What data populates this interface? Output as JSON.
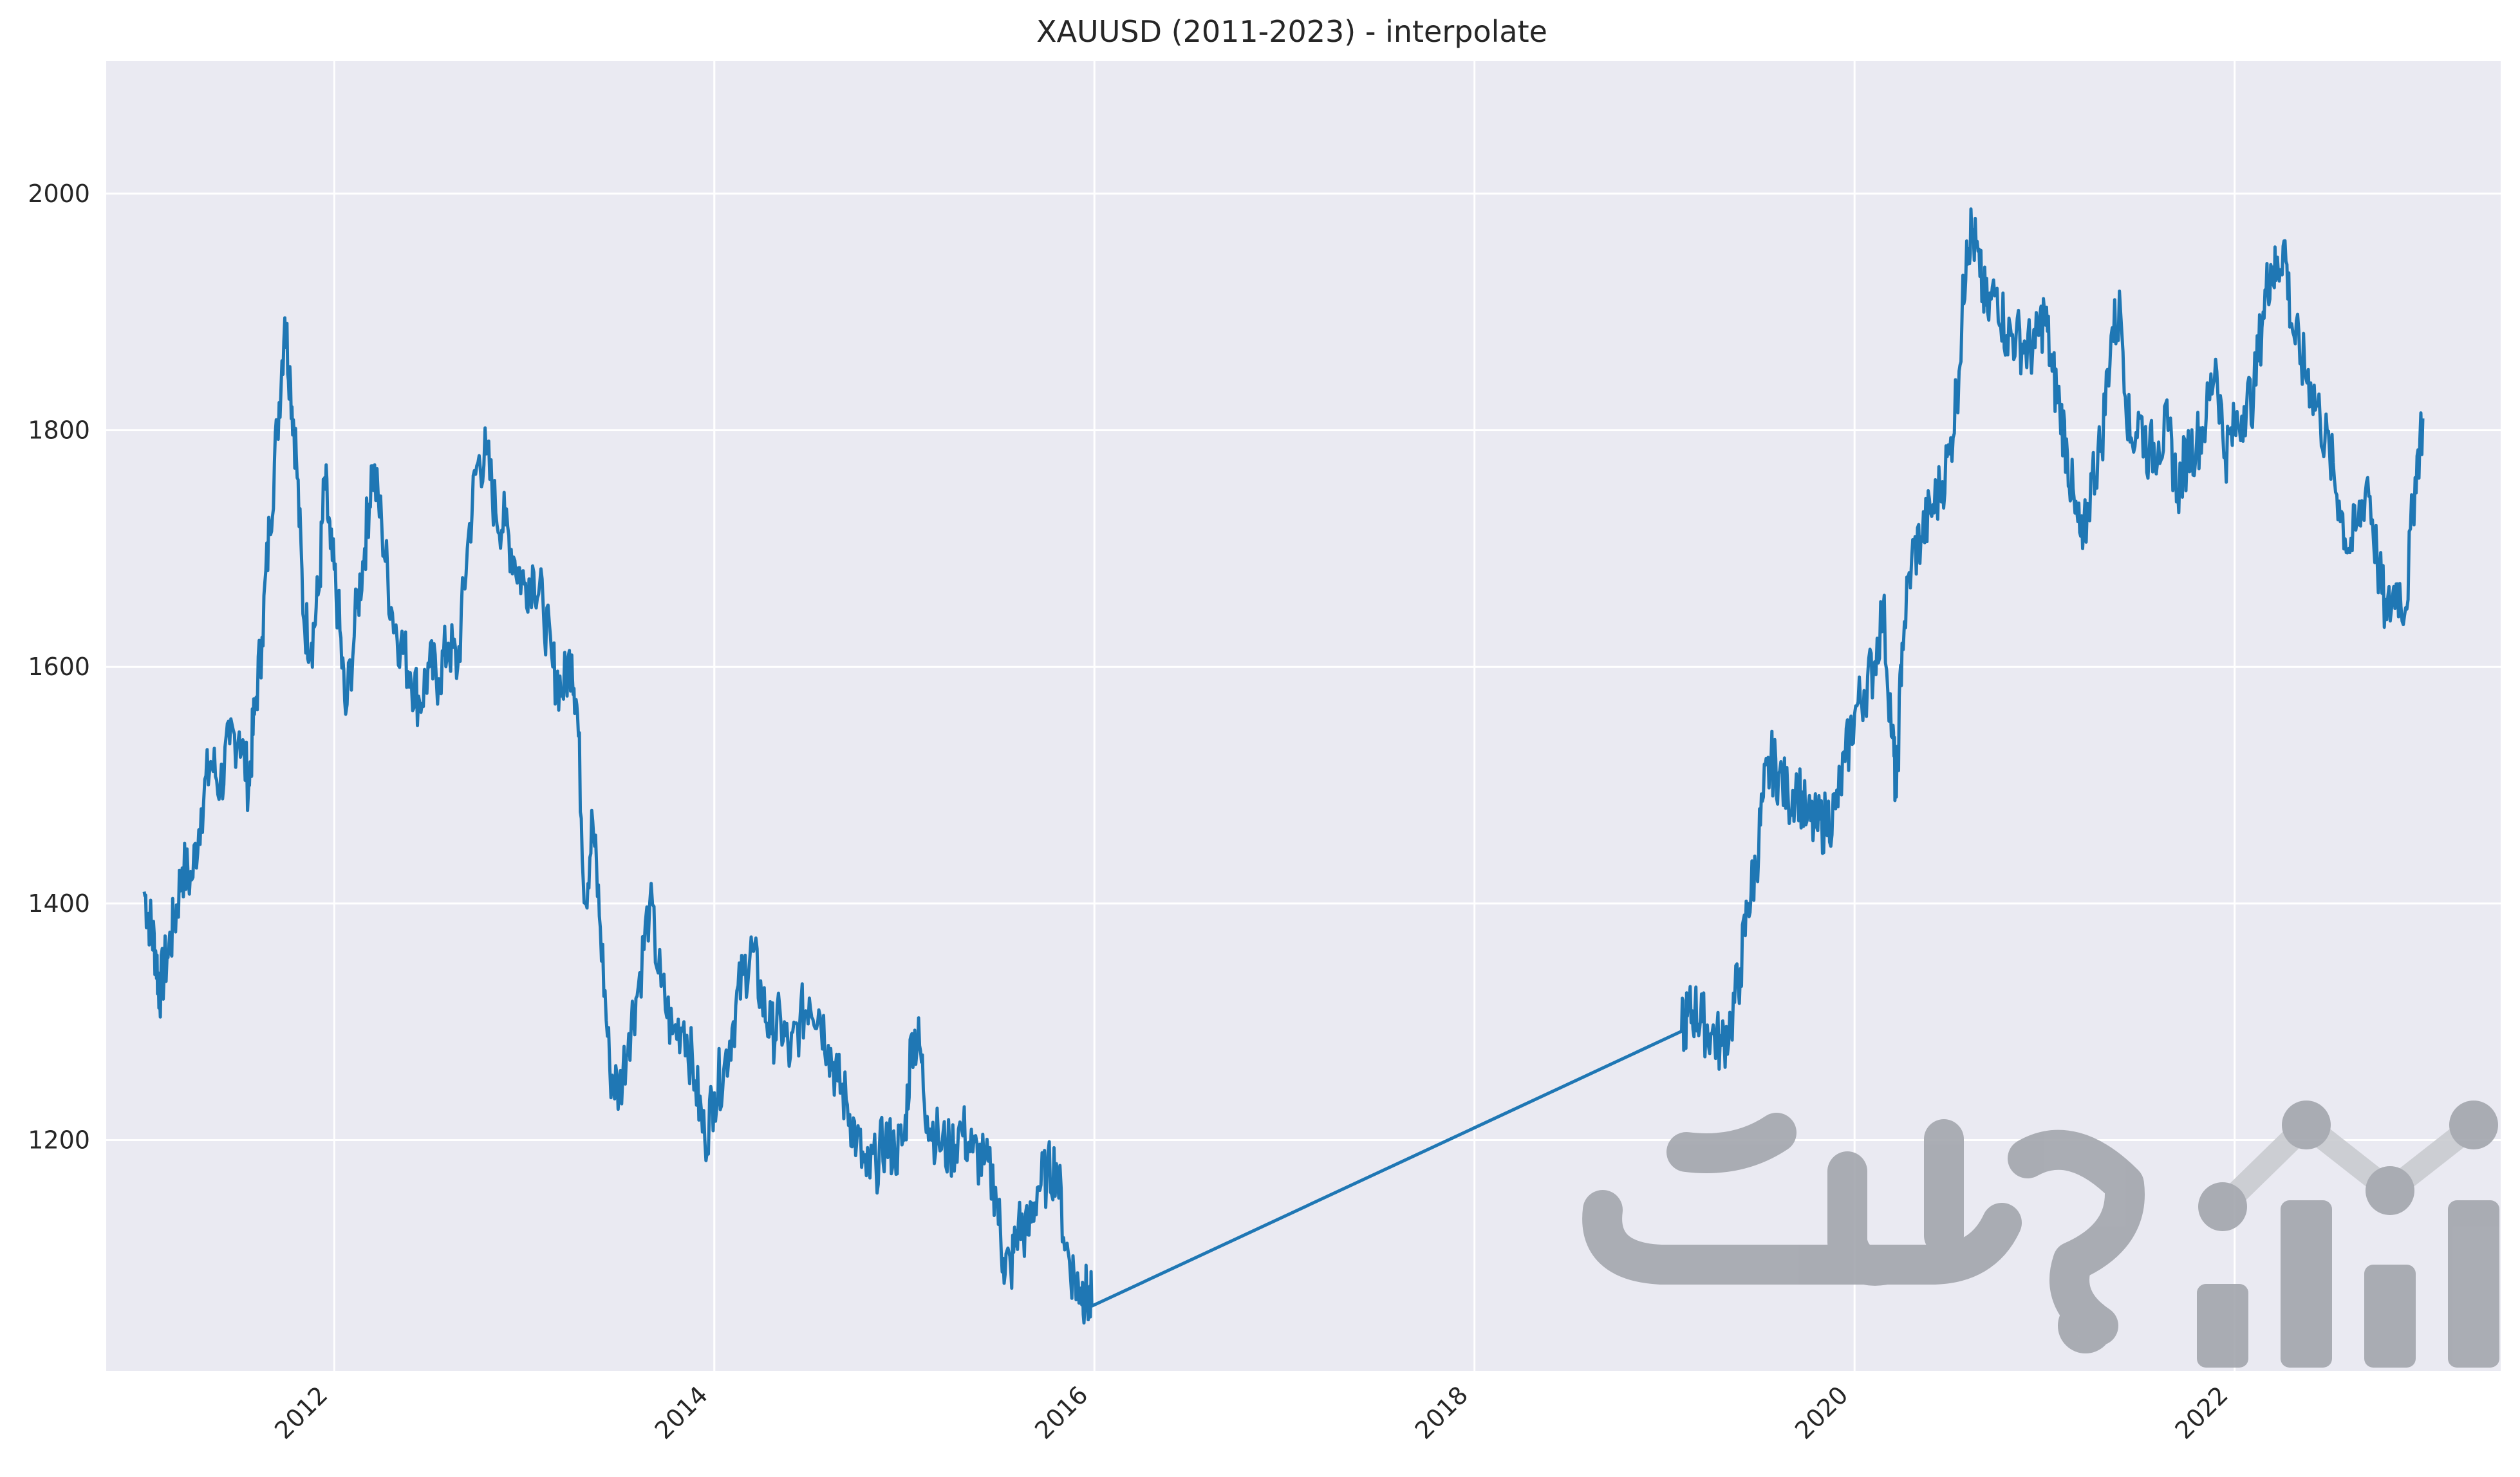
{
  "chart_data": {
    "type": "line",
    "title": "XAUUSD (2011-2023) - interpolate",
    "xlabel": "",
    "ylabel": "",
    "x_axis": "date",
    "xlim": [
      2010.8,
      2023.4
    ],
    "ylim": [
      1005,
      2112
    ],
    "x_ticks": [
      2012,
      2014,
      2016,
      2018,
      2020,
      2022
    ],
    "x_tick_labels": [
      "2012",
      "2014",
      "2016",
      "2018",
      "2020",
      "2022"
    ],
    "y_ticks": [
      1200,
      1400,
      1600,
      1800,
      2000
    ],
    "y_tick_labels": [
      "1200",
      "1400",
      "1600",
      "1800",
      "2000"
    ],
    "grid": true,
    "line_color": "#1f77b4",
    "background_color": "#eaeaf2",
    "series": [
      {
        "x": [
          2011.0,
          2011.03,
          2011.06,
          2011.08,
          2011.12,
          2011.16,
          2011.2,
          2011.25,
          2011.3,
          2011.35,
          2011.4,
          2011.45,
          2011.5,
          2011.55,
          2011.58,
          2011.62,
          2011.66,
          2011.7,
          2011.74,
          2011.77,
          2011.8,
          2011.84,
          2011.88,
          2011.92,
          2011.95,
          2011.98,
          2012.02,
          2012.06,
          2012.12,
          2012.16,
          2012.2,
          2012.25,
          2012.3,
          2012.35,
          2012.4,
          2012.45,
          2012.5,
          2012.55,
          2012.6,
          2012.65,
          2012.7,
          2012.75,
          2012.8,
          2012.85,
          2012.9,
          2012.95,
          2013.0,
          2013.05,
          2013.1,
          2013.15,
          2013.2,
          2013.25,
          2013.28,
          2013.32,
          2013.36,
          2013.4,
          2013.45,
          2013.5,
          2013.55,
          2013.6,
          2013.66,
          2013.72,
          2013.78,
          2013.84,
          2013.9,
          2013.95,
          2014.0,
          2014.05,
          2014.1,
          2014.15,
          2014.2,
          2014.25,
          2014.3,
          2014.35,
          2014.4,
          2014.45,
          2014.5,
          2014.55,
          2014.6,
          2014.65,
          2014.7,
          2014.75,
          2014.8,
          2014.85,
          2014.9,
          2014.95,
          2015.0,
          2015.04,
          2015.08,
          2015.12,
          2015.18,
          2015.24,
          2015.3,
          2015.36,
          2015.42,
          2015.48,
          2015.52,
          2015.56,
          2015.6,
          2015.65,
          2015.7,
          2015.75,
          2015.8,
          2015.85,
          2015.9,
          2015.93,
          2015.96,
          2015.99,
          2019.09,
          2019.12,
          2019.16,
          2019.2,
          2019.25,
          2019.3,
          2019.35,
          2019.4,
          2019.44,
          2019.48,
          2019.52,
          2019.56,
          2019.6,
          2019.65,
          2019.7,
          2019.75,
          2019.8,
          2019.85,
          2019.9,
          2019.95,
          2020.0,
          2020.05,
          2020.1,
          2020.15,
          2020.2,
          2020.22,
          2020.25,
          2020.3,
          2020.35,
          2020.4,
          2020.45,
          2020.5,
          2020.55,
          2020.59,
          2020.62,
          2020.66,
          2020.7,
          2020.75,
          2020.8,
          2020.85,
          2020.9,
          2020.95,
          2021.0,
          2021.04,
          2021.08,
          2021.12,
          2021.16,
          2021.2,
          2021.25,
          2021.3,
          2021.35,
          2021.4,
          2021.45,
          2021.5,
          2021.55,
          2021.6,
          2021.65,
          2021.7,
          2021.75,
          2021.8,
          2021.85,
          2021.9,
          2021.95,
          2022.0,
          2022.05,
          2022.1,
          2022.15,
          2022.19,
          2022.22,
          2022.26,
          2022.3,
          2022.35,
          2022.4,
          2022.45,
          2022.5,
          2022.55,
          2022.6,
          2022.65,
          2022.7,
          2022.75,
          2022.8,
          2022.85,
          2022.9,
          2022.95,
          2022.99
        ],
        "y": [
          1410,
          1385,
          1360,
          1325,
          1355,
          1385,
          1430,
          1420,
          1480,
          1520,
          1500,
          1535,
          1545,
          1500,
          1560,
          1625,
          1720,
          1800,
          1895,
          1840,
          1780,
          1640,
          1620,
          1665,
          1760,
          1700,
          1650,
          1560,
          1650,
          1700,
          1770,
          1720,
          1650,
          1620,
          1595,
          1570,
          1600,
          1590,
          1620,
          1600,
          1700,
          1770,
          1780,
          1730,
          1720,
          1690,
          1670,
          1680,
          1650,
          1600,
          1580,
          1610,
          1560,
          1400,
          1470,
          1380,
          1260,
          1240,
          1290,
          1330,
          1400,
          1330,
          1290,
          1300,
          1250,
          1200,
          1240,
          1260,
          1300,
          1340,
          1360,
          1320,
          1290,
          1300,
          1270,
          1300,
          1320,
          1310,
          1280,
          1250,
          1230,
          1200,
          1170,
          1180,
          1200,
          1190,
          1200,
          1290,
          1280,
          1220,
          1200,
          1190,
          1210,
          1190,
          1180,
          1160,
          1100,
          1090,
          1130,
          1120,
          1160,
          1170,
          1180,
          1110,
          1080,
          1075,
          1068,
          1060,
          1292,
          1305,
          1310,
          1300,
          1290,
          1280,
          1300,
          1345,
          1400,
          1430,
          1490,
          1520,
          1510,
          1490,
          1500,
          1470,
          1465,
          1470,
          1480,
          1520,
          1560,
          1580,
          1600,
          1650,
          1540,
          1490,
          1620,
          1690,
          1710,
          1730,
          1750,
          1780,
          1850,
          1960,
          1970,
          1930,
          1900,
          1920,
          1880,
          1880,
          1870,
          1870,
          1900,
          1850,
          1820,
          1780,
          1730,
          1700,
          1760,
          1790,
          1880,
          1900,
          1790,
          1810,
          1780,
          1790,
          1800,
          1750,
          1780,
          1790,
          1810,
          1860,
          1780,
          1800,
          1820,
          1830,
          1900,
          1940,
          1930,
          1960,
          1890,
          1860,
          1840,
          1810,
          1780,
          1740,
          1700,
          1720,
          1760,
          1690,
          1640,
          1670,
          1650,
          1760,
          1810
        ]
      }
    ]
  }
}
